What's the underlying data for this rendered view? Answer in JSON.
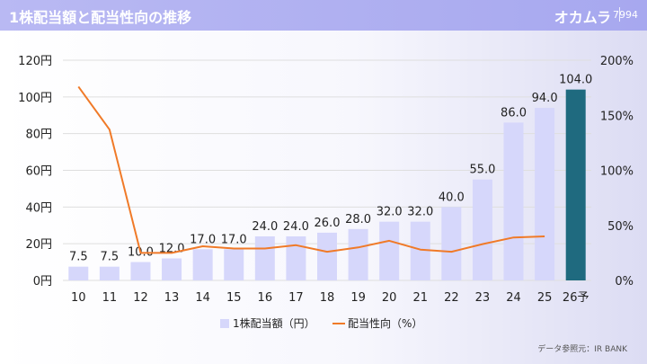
{
  "header": {
    "title": "1株配当額と配当性向の推移",
    "company": "オカムラ",
    "code": "7994"
  },
  "source": "データ参照元：IR BANK",
  "colors": {
    "bar": "#d6d7fb",
    "bar_forecast": "#1f6a7f",
    "line": "#f07a28",
    "header": "#abacf0"
  },
  "chart_data": {
    "type": "bar",
    "title": "",
    "categories": [
      "10",
      "11",
      "12",
      "13",
      "14",
      "15",
      "16",
      "17",
      "18",
      "19",
      "20",
      "21",
      "22",
      "23",
      "24",
      "25",
      "26予"
    ],
    "series": [
      {
        "name": "1株配当額（円）",
        "type": "bar",
        "axis": "left",
        "values": [
          7.5,
          7.5,
          10.0,
          12.0,
          17.0,
          17.0,
          24.0,
          24.0,
          26.0,
          28.0,
          32.0,
          32.0,
          40.0,
          55.0,
          86.0,
          94.0,
          104.0
        ],
        "labels": [
          "7.5",
          "7.5",
          "10.0",
          "12.0",
          "17.0",
          "17.0",
          "24.0",
          "24.0",
          "26.0",
          "28.0",
          "32.0",
          "32.0",
          "40.0",
          "55.0",
          "86.0",
          "94.0",
          "104.0"
        ]
      },
      {
        "name": "配当性向（%）",
        "type": "line",
        "axis": "right",
        "values": [
          176,
          137,
          25,
          25,
          31,
          29,
          29,
          32,
          26,
          30,
          36,
          28,
          26,
          33,
          39,
          40,
          null
        ]
      }
    ],
    "y_left": {
      "min": 0,
      "max": 120,
      "ticks": [
        "0円",
        "20円",
        "40円",
        "60円",
        "80円",
        "100円",
        "120円"
      ]
    },
    "y_right": {
      "min": 0,
      "max": 200,
      "ticks": [
        "0%",
        "50%",
        "100%",
        "150%",
        "200%"
      ]
    },
    "grid": true,
    "legend": "bottom-center",
    "forecast_index": 16
  }
}
